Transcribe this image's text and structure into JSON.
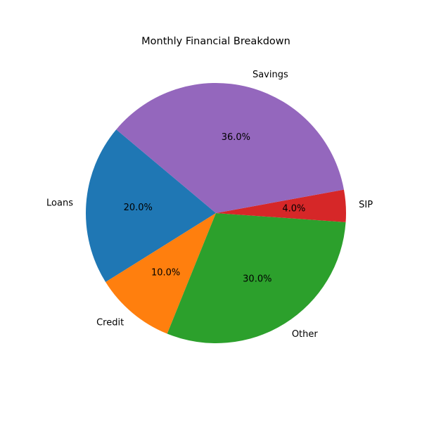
{
  "chart_data": {
    "type": "pie",
    "title": "Monthly Financial Breakdown",
    "start_angle_deg": 140,
    "direction": "counterclockwise",
    "slices": [
      {
        "label": "Loans",
        "value": 20.0,
        "pct_text": "20.0%",
        "color": "#1f77b4"
      },
      {
        "label": "Credit",
        "value": 10.0,
        "pct_text": "10.0%",
        "color": "#ff7f0e"
      },
      {
        "label": "Other",
        "value": 30.0,
        "pct_text": "30.0%",
        "color": "#2ca02c"
      },
      {
        "label": "SIP",
        "value": 4.0,
        "pct_text": "4.0%",
        "color": "#d62728"
      },
      {
        "label": "Savings",
        "value": 36.0,
        "pct_text": "36.0%",
        "color": "#9467bd"
      }
    ]
  }
}
